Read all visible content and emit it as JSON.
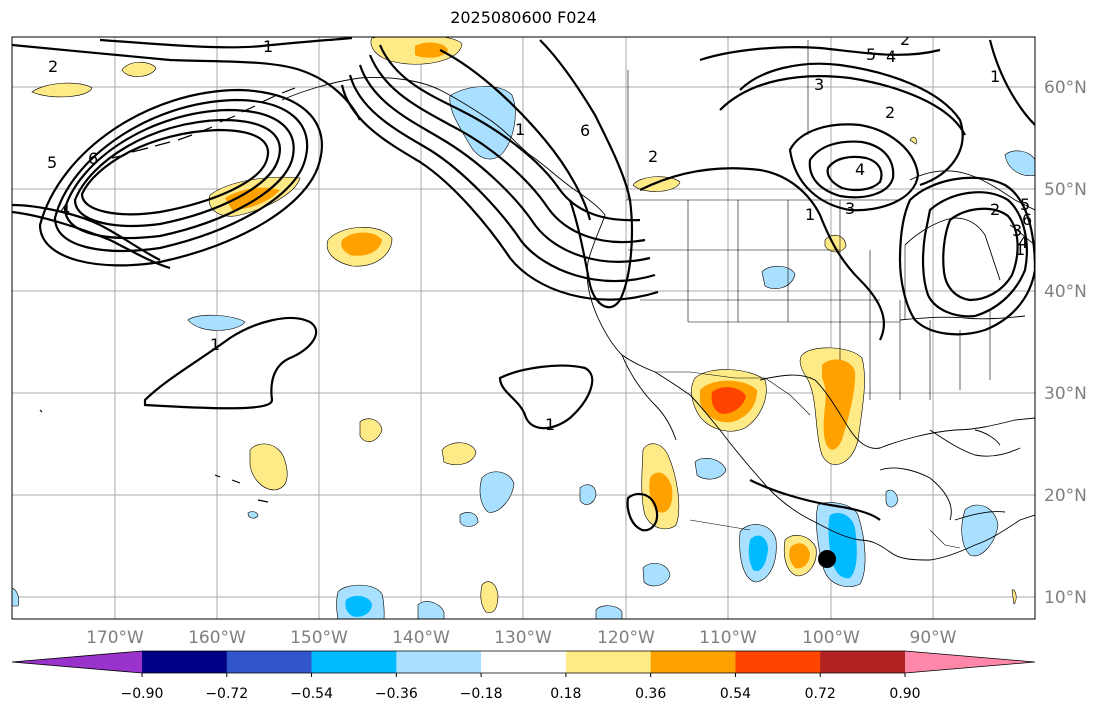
{
  "title": "2025080600 F024",
  "lon_labels": [
    "170°W",
    "160°W",
    "150°W",
    "140°W",
    "130°W",
    "120°W",
    "110°W",
    "100°W",
    "90°W"
  ],
  "lat_labels": [
    "60°N",
    "50°N",
    "40°N",
    "30°N",
    "20°N",
    "10°N"
  ],
  "colorbar": {
    "colors": [
      "#9933cc",
      "#000088",
      "#3355cc",
      "#00bbff",
      "#aae0ff",
      "#ffffff",
      "#ffea88",
      "#ffa200",
      "#ff4400",
      "#b22222",
      "#ff88aa"
    ],
    "ticks": [
      "−0.90",
      "−0.72",
      "−0.54",
      "−0.36",
      "−0.18",
      "0.18",
      "0.36",
      "0.54",
      "0.72",
      "0.90"
    ]
  },
  "contour_labels": [
    "1",
    "2",
    "5",
    "6",
    "4",
    "1",
    "6",
    "5",
    "4",
    "3",
    "2",
    "1",
    "1",
    "4",
    "3",
    "2",
    "1",
    "1",
    "2",
    "1",
    "2",
    "3",
    "4",
    "5",
    "6"
  ],
  "marker": {
    "type": "black-dot",
    "lon": -100,
    "lat": 13.5
  }
}
